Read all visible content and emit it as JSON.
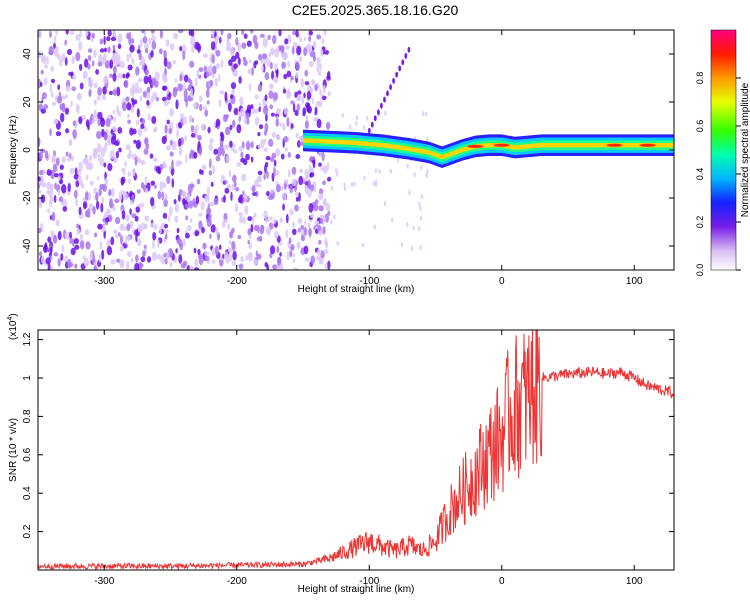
{
  "title": "C2E5.2025.365.18.16.G20",
  "chart_data": [
    {
      "type": "heatmap",
      "title": "",
      "xlabel": "Height of straight line (km)",
      "ylabel": "Frequency (Hz)",
      "xlim": [
        -350,
        130
      ],
      "ylim": [
        -50,
        50
      ],
      "xticks": [
        -300,
        -200,
        -100,
        0,
        100
      ],
      "yticks": [
        -40,
        -20,
        0,
        20,
        40
      ],
      "ridge": {
        "x": [
          -150,
          -130,
          -110,
          -90,
          -70,
          -55,
          -45,
          -40,
          -30,
          -20,
          -10,
          0,
          10,
          30,
          60,
          90,
          130
        ],
        "freq": [
          4,
          3.5,
          3,
          2,
          0.5,
          -1,
          -3,
          -2,
          0,
          1.5,
          2,
          2,
          1,
          2,
          2,
          2,
          2
        ]
      },
      "colorbar": {
        "label": "Normalized spectral amplitude",
        "range": [
          0.0,
          1.0
        ],
        "ticks": [
          0.0,
          0.2,
          0.4,
          0.6,
          0.8
        ]
      }
    },
    {
      "type": "line",
      "title": "",
      "xlabel": "Height of straight line (km)",
      "ylabel": "SNR (10 * v/v)",
      "scale_label": "(x10",
      "scale_exponent": "4",
      "scale_close": ")",
      "xlim": [
        -350,
        130
      ],
      "ylim": [
        0,
        1.25
      ],
      "xticks": [
        -300,
        -200,
        -100,
        0,
        100
      ],
      "yticks": [
        0.2,
        0.4,
        0.6,
        0.8,
        1.0,
        1.2
      ],
      "series": [
        {
          "name": "SNR",
          "color": "#ee3333",
          "x": [
            -350,
            -300,
            -250,
            -200,
            -150,
            -130,
            -110,
            -100,
            -90,
            -80,
            -70,
            -60,
            -50,
            -40,
            -30,
            -20,
            -10,
            0,
            5,
            10,
            20,
            30,
            50,
            70,
            80,
            90,
            100,
            110,
            120,
            130
          ],
          "y": [
            0.02,
            0.02,
            0.02,
            0.025,
            0.03,
            0.06,
            0.12,
            0.15,
            0.12,
            0.1,
            0.13,
            0.1,
            0.15,
            0.3,
            0.4,
            0.5,
            0.6,
            0.7,
            0.8,
            0.85,
            0.9,
            1.0,
            1.02,
            1.03,
            1.02,
            1.03,
            1.0,
            0.96,
            0.94,
            0.92
          ]
        }
      ]
    }
  ]
}
